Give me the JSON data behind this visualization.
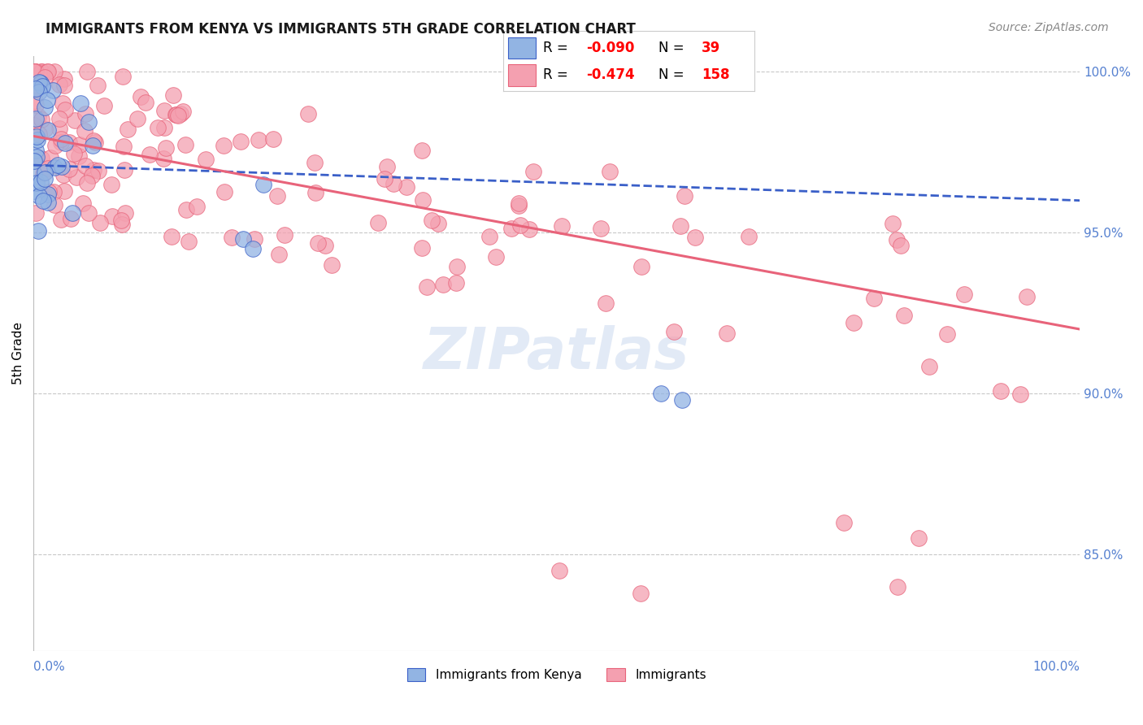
{
  "title": "IMMIGRANTS FROM KENYA VS IMMIGRANTS 5TH GRADE CORRELATION CHART",
  "source": "Source: ZipAtlas.com",
  "ylabel": "5th Grade",
  "right_yticklabels": [
    "100.0%",
    "95.0%",
    "90.0%",
    "85.0%"
  ],
  "right_ytick_vals": [
    1.0,
    0.95,
    0.9,
    0.85
  ],
  "legend_blue_r_val": "-0.090",
  "legend_blue_n_val": "39",
  "legend_pink_r_val": "-0.474",
  "legend_pink_n_val": "158",
  "blue_color": "#92b4e3",
  "pink_color": "#f4a0b0",
  "blue_line_color": "#3a5fc8",
  "pink_line_color": "#e8637a",
  "title_color": "#1a1a1a",
  "source_color": "#888888",
  "axis_label_color": "#5580d0",
  "grid_color": "#c8c8c8",
  "watermark_color": "#d0ddf0",
  "xlim": [
    0.0,
    1.0
  ],
  "ylim": [
    0.82,
    1.005
  ],
  "blue_trend_y_start": 0.971,
  "blue_trend_y_end": 0.96,
  "pink_trend_y_start": 0.98,
  "pink_trend_y_end": 0.92
}
